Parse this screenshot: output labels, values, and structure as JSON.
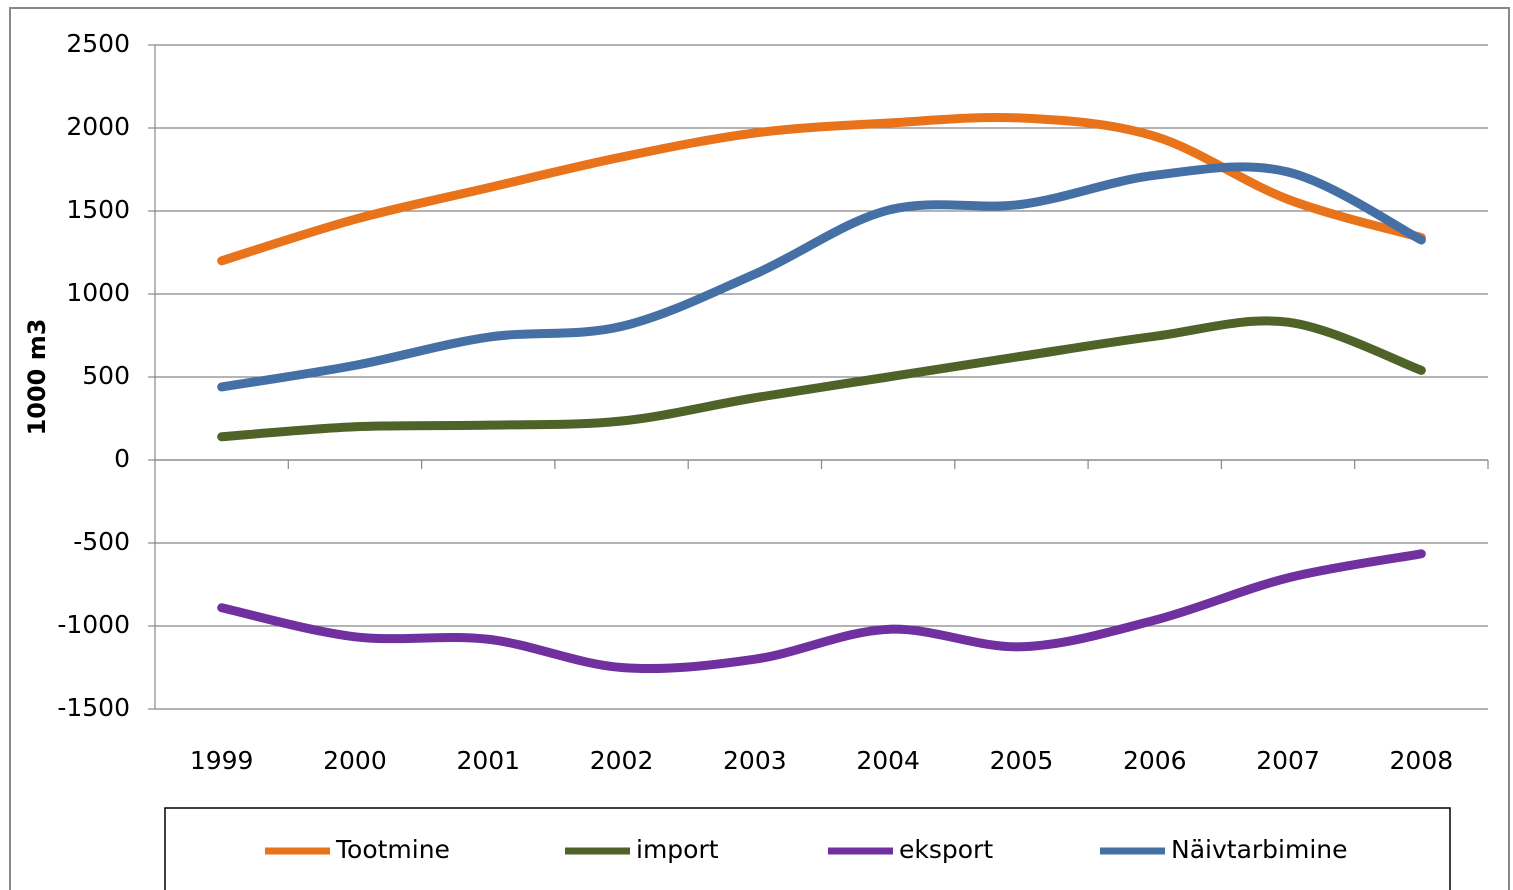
{
  "chart_data": {
    "type": "line",
    "ylabel": "1000 m3",
    "categories": [
      "1999",
      "2000",
      "2001",
      "2002",
      "2003",
      "2004",
      "2005",
      "2006",
      "2007",
      "2008"
    ],
    "series": [
      {
        "name": "Tootmine",
        "color": "#e8731a",
        "values": [
          1200,
          1450,
          1640,
          1825,
          1970,
          2030,
          2060,
          1950,
          1570,
          1340
        ]
      },
      {
        "name": "import",
        "color": "#4f6228",
        "values": [
          140,
          200,
          210,
          235,
          375,
          500,
          625,
          745,
          830,
          540
        ]
      },
      {
        "name": "eksport",
        "color": "#7030a0",
        "values": [
          -890,
          -1065,
          -1080,
          -1250,
          -1200,
          -1020,
          -1125,
          -965,
          -710,
          -565
        ]
      },
      {
        "name": "Näivtarbimine",
        "color": "#4470a6",
        "values": [
          440,
          570,
          740,
          805,
          1120,
          1505,
          1540,
          1715,
          1735,
          1325
        ]
      }
    ],
    "ylim": [
      -1500,
      2500
    ],
    "yticks": [
      -1500,
      -1000,
      -500,
      0,
      500,
      1000,
      1500,
      2000,
      2500
    ],
    "grid": true,
    "legend": "bottom"
  }
}
